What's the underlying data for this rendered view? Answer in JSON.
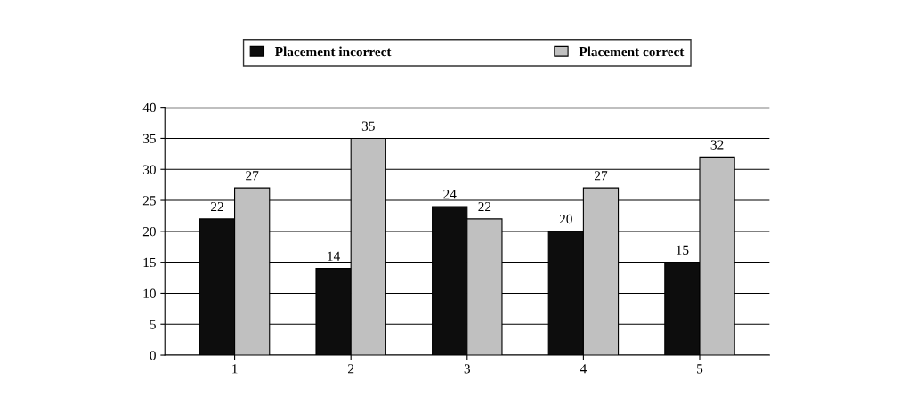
{
  "chart_data": {
    "type": "bar",
    "categories": [
      "1",
      "2",
      "3",
      "4",
      "5"
    ],
    "series": [
      {
        "name": "Placement incorrect",
        "color": "#0d0d0d",
        "values": [
          22,
          14,
          24,
          20,
          15
        ]
      },
      {
        "name": "Placement correct",
        "color": "#c0c0c0",
        "values": [
          27,
          35,
          22,
          27,
          32
        ]
      }
    ],
    "ylim": [
      0,
      40
    ],
    "yticks": [
      0,
      5,
      10,
      15,
      20,
      25,
      30,
      35,
      40
    ],
    "grid": "y",
    "legend": "top",
    "data_labels": true
  }
}
